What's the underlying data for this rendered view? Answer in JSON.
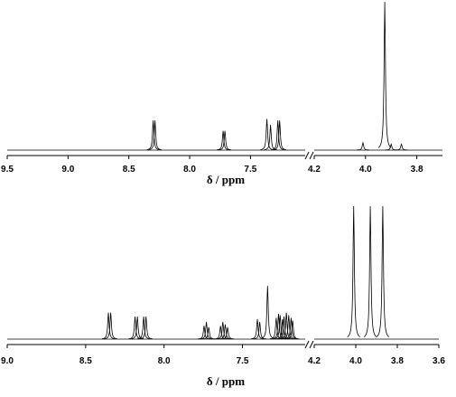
{
  "chart_data": [
    {
      "type": "spectrum",
      "xlabel": "δ  / ppm",
      "ylim": [
        0,
        100
      ],
      "color": "#000000",
      "segments": [
        {
          "xlim": [
            9.5,
            7.05
          ],
          "xticks": [
            9.5,
            {
              "value": 9,
              "label": "9.0"
            },
            8.5,
            {
              "value": 8,
              "label": "8.0"
            },
            7.5
          ],
          "x": [
            8.3,
            8.285,
            7.725,
            7.71,
            7.365,
            7.335,
            7.275,
            7.26
          ],
          "values": [
            20,
            20,
            13,
            13,
            21,
            17,
            20,
            20
          ]
        },
        {
          "xlim": [
            4.2,
            3.7
          ],
          "xticks": [
            4.2,
            {
              "value": 4,
              "label": "4.0"
            },
            3.8
          ],
          "x": [
            4.01,
            3.925,
            3.9,
            3.86
          ],
          "values": [
            5,
            100,
            4,
            4
          ]
        }
      ]
    },
    {
      "type": "spectrum",
      "xlabel": "δ  / ppm",
      "ylim": [
        0,
        100
      ],
      "color": "#000000",
      "segments": [
        {
          "xlim": [
            9.0,
            7.1
          ],
          "xticks": [
            {
              "value": 9,
              "label": "9.0"
            },
            8.5,
            {
              "value": 8,
              "label": "8.0"
            },
            7.5
          ],
          "x": [
            8.355,
            8.34,
            8.185,
            8.17,
            8.13,
            8.115,
            7.745,
            7.73,
            7.715,
            7.64,
            7.625,
            7.61,
            7.595,
            7.405,
            7.39,
            7.34,
            7.285,
            7.27,
            7.26,
            7.245,
            7.235,
            7.22,
            7.205,
            7.19,
            7.18
          ],
          "values": [
            20,
            20,
            17,
            17,
            17,
            17,
            10,
            13,
            9,
            10,
            13,
            11,
            9,
            15,
            13,
            40,
            16,
            19,
            18,
            15,
            17,
            20,
            18,
            16,
            14
          ]
        },
        {
          "xlim": [
            4.2,
            3.6
          ],
          "xticks": [
            4.2,
            {
              "value": 4,
              "label": "4.0"
            },
            3.8,
            3.6
          ],
          "x": [
            4.01,
            3.93,
            3.87
          ],
          "values": [
            100,
            100,
            100
          ]
        }
      ]
    }
  ]
}
